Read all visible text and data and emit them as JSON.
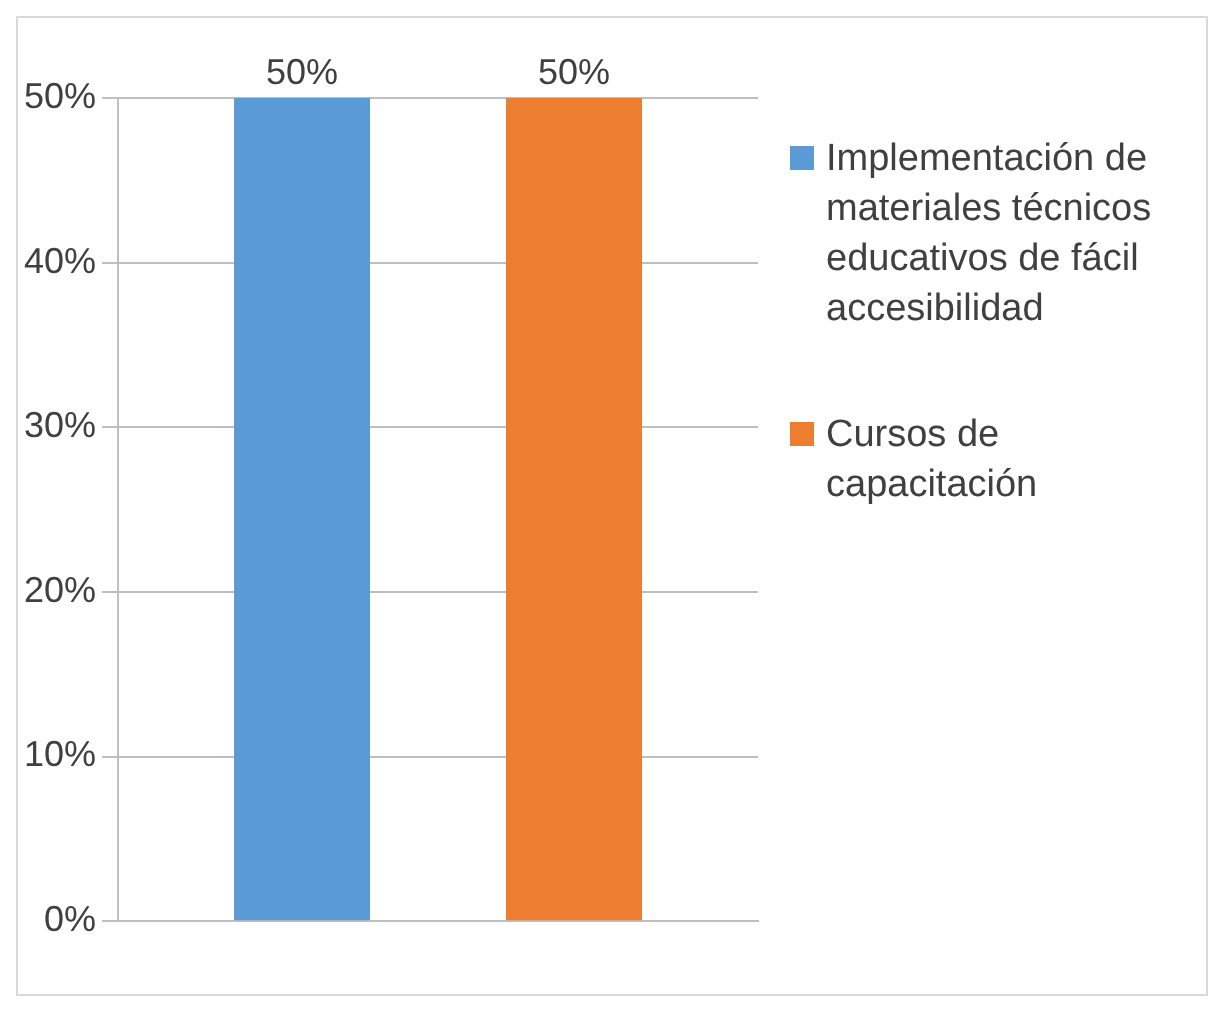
{
  "chart_data": {
    "type": "bar",
    "categories": [
      null
    ],
    "series": [
      {
        "name": "Implementación de materiales técnicos educativos de fácil accesibilidad",
        "color": "#5b9bd5",
        "values": [
          50
        ],
        "value_labels": [
          "50%"
        ]
      },
      {
        "name": "Cursos de capacitación",
        "color": "#ed7d31",
        "values": [
          50
        ],
        "value_labels": [
          "50%"
        ]
      }
    ],
    "ylim": [
      0,
      50
    ],
    "yticks": [
      {
        "value": 0,
        "label": "0%"
      },
      {
        "value": 10,
        "label": "10%"
      },
      {
        "value": 20,
        "label": "20%"
      },
      {
        "value": 30,
        "label": "30%"
      },
      {
        "value": 40,
        "label": "40%"
      },
      {
        "value": 50,
        "label": "50%"
      }
    ],
    "grid": "y",
    "legend": "right"
  }
}
